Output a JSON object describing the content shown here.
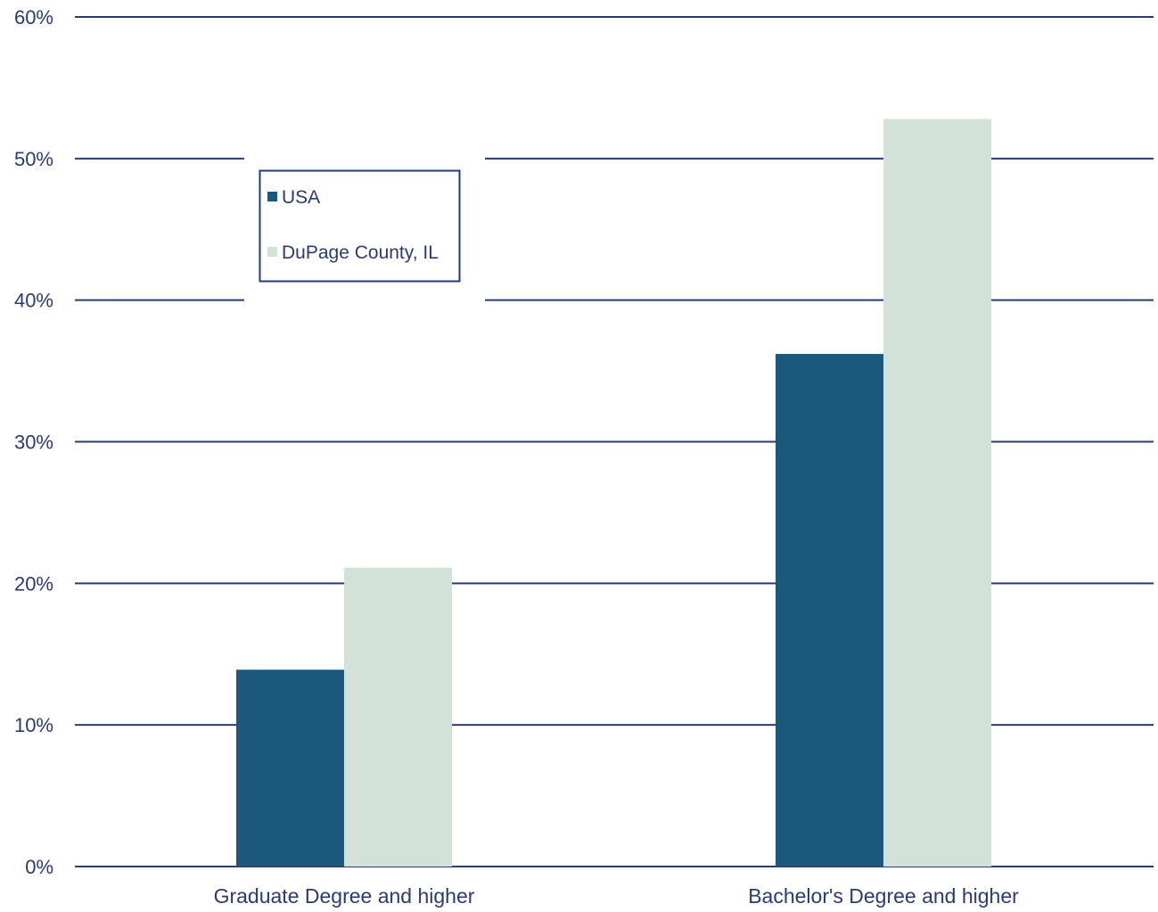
{
  "chart_data": {
    "type": "bar",
    "categories": [
      "Graduate Degree and higher",
      "Bachelor's Degree and higher"
    ],
    "series": [
      {
        "name": "USA",
        "values": [
          13.9,
          36.2
        ]
      },
      {
        "name": "DuPage County, IL",
        "values": [
          21.1,
          52.8
        ]
      }
    ],
    "ylim": [
      0,
      60
    ],
    "yticks": [
      0,
      10,
      20,
      30,
      40,
      50,
      60
    ],
    "ytick_labels": [
      "0%",
      "10%",
      "20%",
      "30%",
      "40%",
      "50%",
      "60%"
    ],
    "title": "",
    "xlabel": "",
    "ylabel": "",
    "grid": true,
    "legend_position": "top-left",
    "colors": {
      "USA": "#1c587c",
      "DuPage County, IL": "#d3e2d9",
      "axis": "#2b3a72"
    }
  }
}
